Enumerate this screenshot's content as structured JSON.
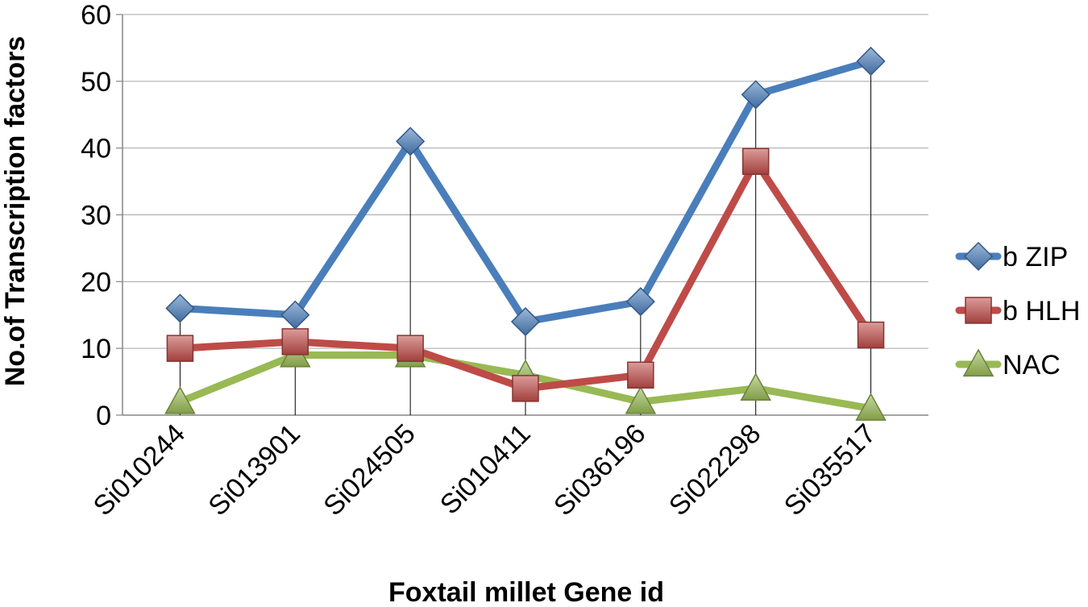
{
  "chart_data": {
    "type": "line",
    "xlabel": "Foxtail millet Gene id",
    "ylabel": "No.of Transcription factors",
    "ylim": [
      0,
      60
    ],
    "yticks": [
      0,
      10,
      20,
      30,
      40,
      50,
      60
    ],
    "grid": "horizontal",
    "drop_lines": true,
    "legend_position": "right",
    "categories": [
      "Si010244",
      "Si013901",
      "Si024505",
      "Si010411",
      "Si036196",
      "Si022298",
      "Si035517"
    ],
    "series": [
      {
        "name": "b ZIP",
        "marker": "diamond",
        "color": "#4a7ebb",
        "values": [
          16,
          15,
          41,
          14,
          17,
          48,
          53
        ]
      },
      {
        "name": "b HLH",
        "marker": "square",
        "color": "#be4b48",
        "values": [
          10,
          11,
          10,
          4,
          6,
          38,
          12
        ]
      },
      {
        "name": "NAC",
        "marker": "triangle",
        "color": "#98b954",
        "values": [
          2,
          9,
          9,
          6,
          2,
          4,
          1
        ]
      }
    ]
  }
}
